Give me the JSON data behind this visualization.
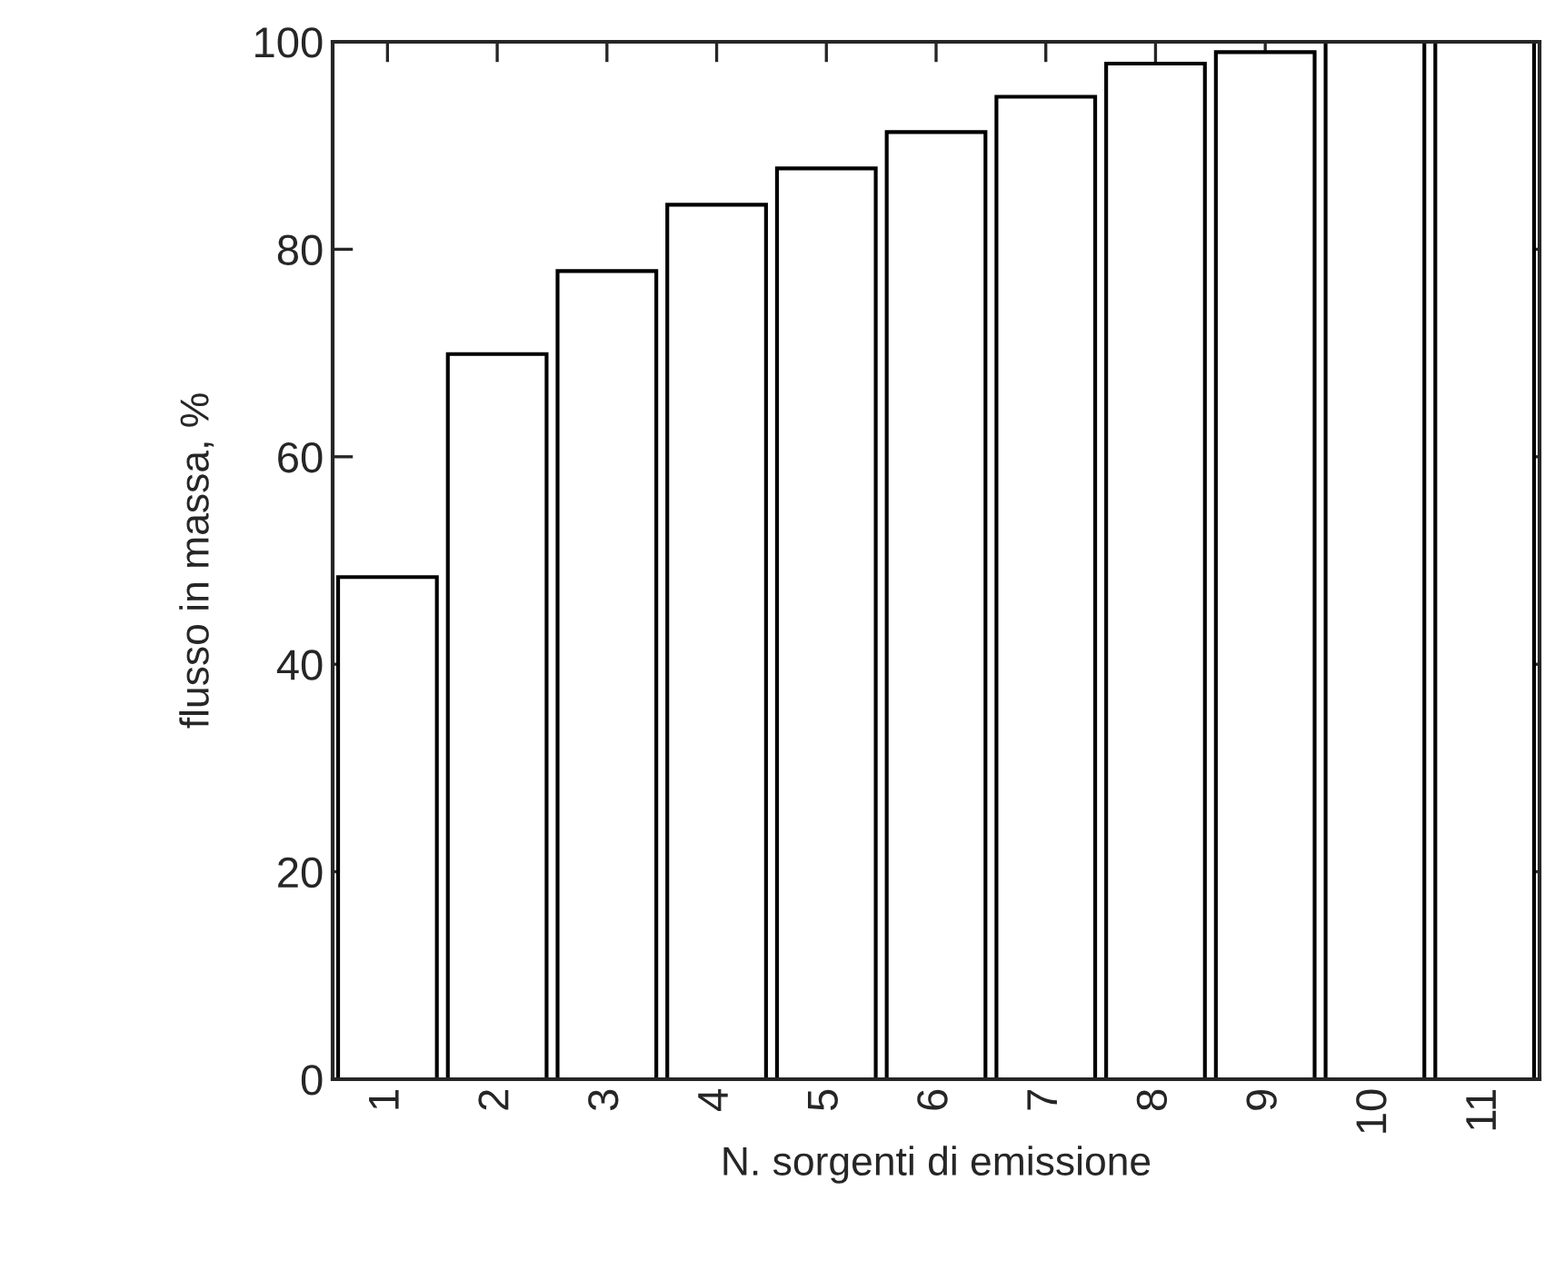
{
  "chart_data": {
    "type": "bar",
    "xlabel": "N. sorgenti di emissione",
    "ylabel": "flusso in massa, %",
    "categories": [
      "1",
      "2",
      "3",
      "4",
      "5",
      "6",
      "7",
      "8",
      "9",
      "10",
      "11"
    ],
    "values": [
      48.4,
      69.9,
      77.9,
      84.3,
      87.8,
      91.3,
      94.7,
      97.9,
      99.0,
      100,
      100
    ],
    "color": "#ffffff",
    "ylim": [
      0,
      100
    ],
    "yticks": [
      0,
      20,
      40,
      60,
      80,
      100
    ],
    "grid": false,
    "legend": false
  }
}
